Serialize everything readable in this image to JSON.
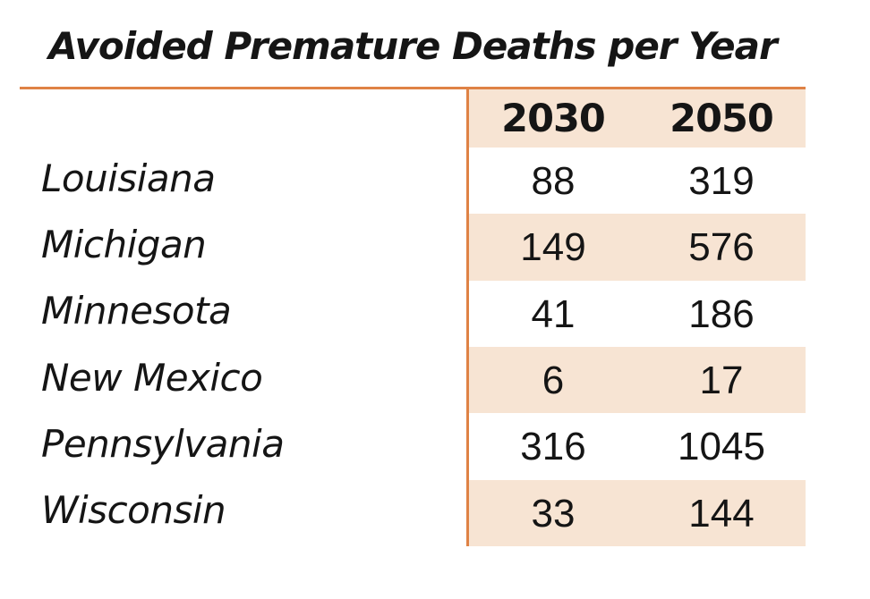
{
  "title": "Avoided Premature Deaths per Year",
  "colors": {
    "accent_line": "#DF8245",
    "band_fill": "#F7E4D3",
    "text": "#151515"
  },
  "table": {
    "columns": [
      "2030",
      "2050"
    ],
    "rows": [
      {
        "state": "Louisiana",
        "y2030": "88",
        "y2050": "319"
      },
      {
        "state": "Michigan",
        "y2030": "149",
        "y2050": "576"
      },
      {
        "state": "Minnesota",
        "y2030": "41",
        "y2050": "186"
      },
      {
        "state": "New Mexico",
        "y2030": "6",
        "y2050": "17"
      },
      {
        "state": "Pennsylvania",
        "y2030": "316",
        "y2050": "1045"
      },
      {
        "state": "Wisconsin",
        "y2030": "33",
        "y2050": "144"
      }
    ]
  },
  "chart_data": {
    "type": "table",
    "title": "Avoided Premature Deaths per Year",
    "categories": [
      "Louisiana",
      "Michigan",
      "Minnesota",
      "New Mexico",
      "Pennsylvania",
      "Wisconsin"
    ],
    "series": [
      {
        "name": "2030",
        "values": [
          88,
          149,
          41,
          6,
          316,
          33
        ]
      },
      {
        "name": "2050",
        "values": [
          319,
          576,
          186,
          17,
          1045,
          144
        ]
      }
    ],
    "layout_hints": {
      "row_banding": "alternate peach fill on value columns only",
      "header_fill": "#F7E4D3",
      "rule_color": "#DF8245"
    }
  }
}
